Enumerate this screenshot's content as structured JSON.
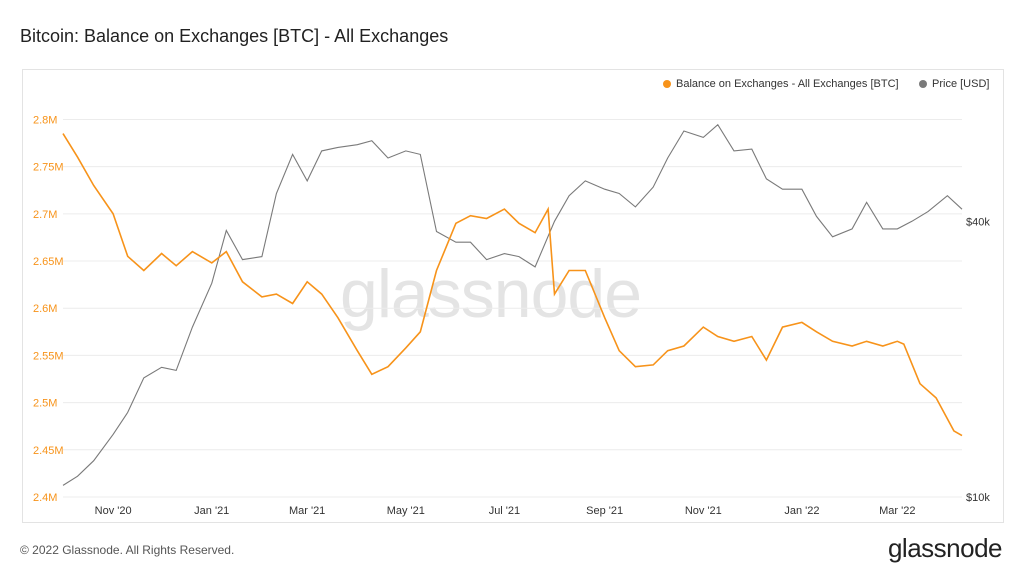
{
  "title": "Bitcoin: Balance on Exchanges [BTC] - All Exchanges",
  "footer": {
    "copyright": "© 2022 Glassnode. All Rights Reserved.",
    "logo": "glassnode"
  },
  "watermark": "glassnode",
  "colors": {
    "balance": "#f7931a",
    "price": "#7a7a7a",
    "grid": "#ececec"
  },
  "chart_data": {
    "type": "line",
    "title": "Bitcoin: Balance on Exchanges [BTC] - All Exchanges",
    "x_tick_labels": [
      "Nov '20",
      "Jan '21",
      "Mar '21",
      "May '21",
      "Jul '21",
      "Sep '21",
      "Nov '21",
      "Jan '22",
      "Mar '22"
    ],
    "y_left": {
      "ticks": [
        2400000,
        2450000,
        2500000,
        2550000,
        2600000,
        2650000,
        2700000,
        2750000,
        2800000
      ],
      "tick_labels": [
        "2.4M",
        "2.45M",
        "2.5M",
        "2.55M",
        "2.6M",
        "2.65M",
        "2.7M",
        "2.75M",
        "2.8M"
      ],
      "range": [
        2400000,
        2810000
      ]
    },
    "y_right": {
      "scale": "log",
      "ticks": [
        10000,
        40000
      ],
      "tick_labels": [
        "$10k",
        "$40k"
      ],
      "range": [
        10000,
        70000
      ]
    },
    "grid": true,
    "legend_position": "top-right",
    "series": [
      {
        "name": "Balance on Exchanges - All Exchanges [BTC]",
        "axis": "left",
        "x": [
          "2020-10-01",
          "2020-10-10",
          "2020-10-20",
          "2020-11-01",
          "2020-11-10",
          "2020-11-20",
          "2020-12-01",
          "2020-12-10",
          "2020-12-20",
          "2021-01-01",
          "2021-01-10",
          "2021-01-20",
          "2021-02-01",
          "2021-02-10",
          "2021-02-20",
          "2021-03-01",
          "2021-03-10",
          "2021-03-20",
          "2021-04-01",
          "2021-04-10",
          "2021-04-20",
          "2021-05-01",
          "2021-05-10",
          "2021-05-20",
          "2021-06-01",
          "2021-06-10",
          "2021-06-20",
          "2021-07-01",
          "2021-07-10",
          "2021-07-20",
          "2021-07-28",
          "2021-08-01",
          "2021-08-10",
          "2021-08-20",
          "2021-09-01",
          "2021-09-10",
          "2021-09-20",
          "2021-10-01",
          "2021-10-10",
          "2021-10-20",
          "2021-11-01",
          "2021-11-10",
          "2021-11-20",
          "2021-12-01",
          "2021-12-10",
          "2021-12-20",
          "2022-01-01",
          "2022-01-10",
          "2022-01-20",
          "2022-02-01",
          "2022-02-10",
          "2022-02-20",
          "2022-03-01",
          "2022-03-05",
          "2022-03-15",
          "2022-03-25",
          "2022-04-05",
          "2022-04-10"
        ],
        "y": [
          2785000,
          2760000,
          2730000,
          2700000,
          2655000,
          2640000,
          2658000,
          2645000,
          2660000,
          2648000,
          2660000,
          2628000,
          2612000,
          2615000,
          2605000,
          2628000,
          2615000,
          2590000,
          2555000,
          2530000,
          2538000,
          2558000,
          2575000,
          2640000,
          2690000,
          2698000,
          2695000,
          2705000,
          2690000,
          2680000,
          2705000,
          2615000,
          2640000,
          2640000,
          2590000,
          2555000,
          2538000,
          2540000,
          2555000,
          2560000,
          2580000,
          2570000,
          2565000,
          2570000,
          2545000,
          2580000,
          2585000,
          2575000,
          2565000,
          2560000,
          2565000,
          2560000,
          2565000,
          2562000,
          2520000,
          2505000,
          2470000,
          2465000
        ]
      },
      {
        "name": "Price [USD]",
        "axis": "right",
        "x": [
          "2020-10-01",
          "2020-10-10",
          "2020-10-20",
          "2020-11-01",
          "2020-11-10",
          "2020-11-20",
          "2020-12-01",
          "2020-12-10",
          "2020-12-20",
          "2021-01-01",
          "2021-01-10",
          "2021-01-20",
          "2021-02-01",
          "2021-02-10",
          "2021-02-20",
          "2021-03-01",
          "2021-03-10",
          "2021-03-20",
          "2021-04-01",
          "2021-04-10",
          "2021-04-20",
          "2021-05-01",
          "2021-05-10",
          "2021-05-20",
          "2021-06-01",
          "2021-06-10",
          "2021-06-20",
          "2021-07-01",
          "2021-07-10",
          "2021-07-20",
          "2021-08-01",
          "2021-08-10",
          "2021-08-20",
          "2021-09-01",
          "2021-09-10",
          "2021-09-20",
          "2021-10-01",
          "2021-10-10",
          "2021-10-20",
          "2021-11-01",
          "2021-11-10",
          "2021-11-20",
          "2021-12-01",
          "2021-12-10",
          "2021-12-20",
          "2022-01-01",
          "2022-01-10",
          "2022-01-20",
          "2022-02-01",
          "2022-02-10",
          "2022-02-20",
          "2022-03-01",
          "2022-03-10",
          "2022-03-20",
          "2022-04-01",
          "2022-04-10"
        ],
        "y": [
          10600,
          11100,
          12000,
          13700,
          15300,
          18200,
          19200,
          18900,
          23500,
          29300,
          38200,
          33000,
          33500,
          46000,
          56000,
          49000,
          57000,
          58000,
          58800,
          60000,
          55000,
          57000,
          56000,
          38000,
          36000,
          36000,
          33000,
          34000,
          33500,
          31800,
          40000,
          45500,
          49000,
          47000,
          46000,
          43000,
          47500,
          55000,
          63000,
          61000,
          65000,
          57000,
          57500,
          49500,
          47000,
          47000,
          41000,
          37000,
          38500,
          44000,
          38500,
          38500,
          40000,
          42000,
          45500,
          42500
        ]
      }
    ]
  }
}
